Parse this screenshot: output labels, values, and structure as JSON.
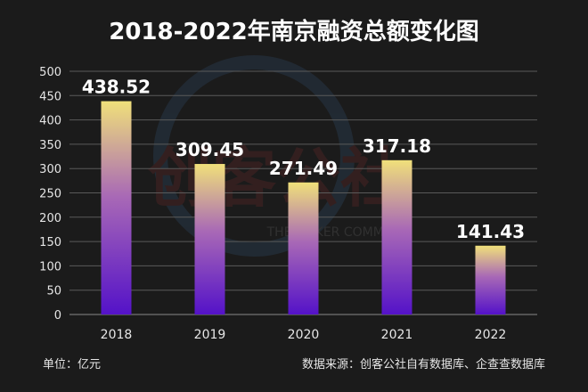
{
  "chart_data": {
    "type": "bar",
    "title": "2018-2022年南京融资总额变化图",
    "categories": [
      "2018",
      "2019",
      "2020",
      "2021",
      "2022"
    ],
    "values": [
      438.52,
      309.45,
      271.49,
      317.18,
      141.43
    ],
    "data_labels": [
      "438.52",
      "309.45",
      "271.49",
      "317.18",
      "141.43"
    ],
    "yticks": [
      0,
      50,
      100,
      150,
      200,
      250,
      300,
      350,
      400,
      450,
      500
    ],
    "ylim": [
      0,
      500
    ],
    "grid": true,
    "unit_note": "单位：亿元",
    "source_note": "数据来源：创客公社自有数据库、企查查数据库",
    "watermark": "创客公社",
    "watermark_sub": "THE MAKER COMMUNE"
  },
  "colors": {
    "background": "#1b1b1b",
    "bar_top": "#f0e07a",
    "bar_mid": "#9a55c8",
    "bar_bottom": "#5a12c8",
    "grid": "#5a5a5a",
    "text": "#e6e6e6"
  }
}
